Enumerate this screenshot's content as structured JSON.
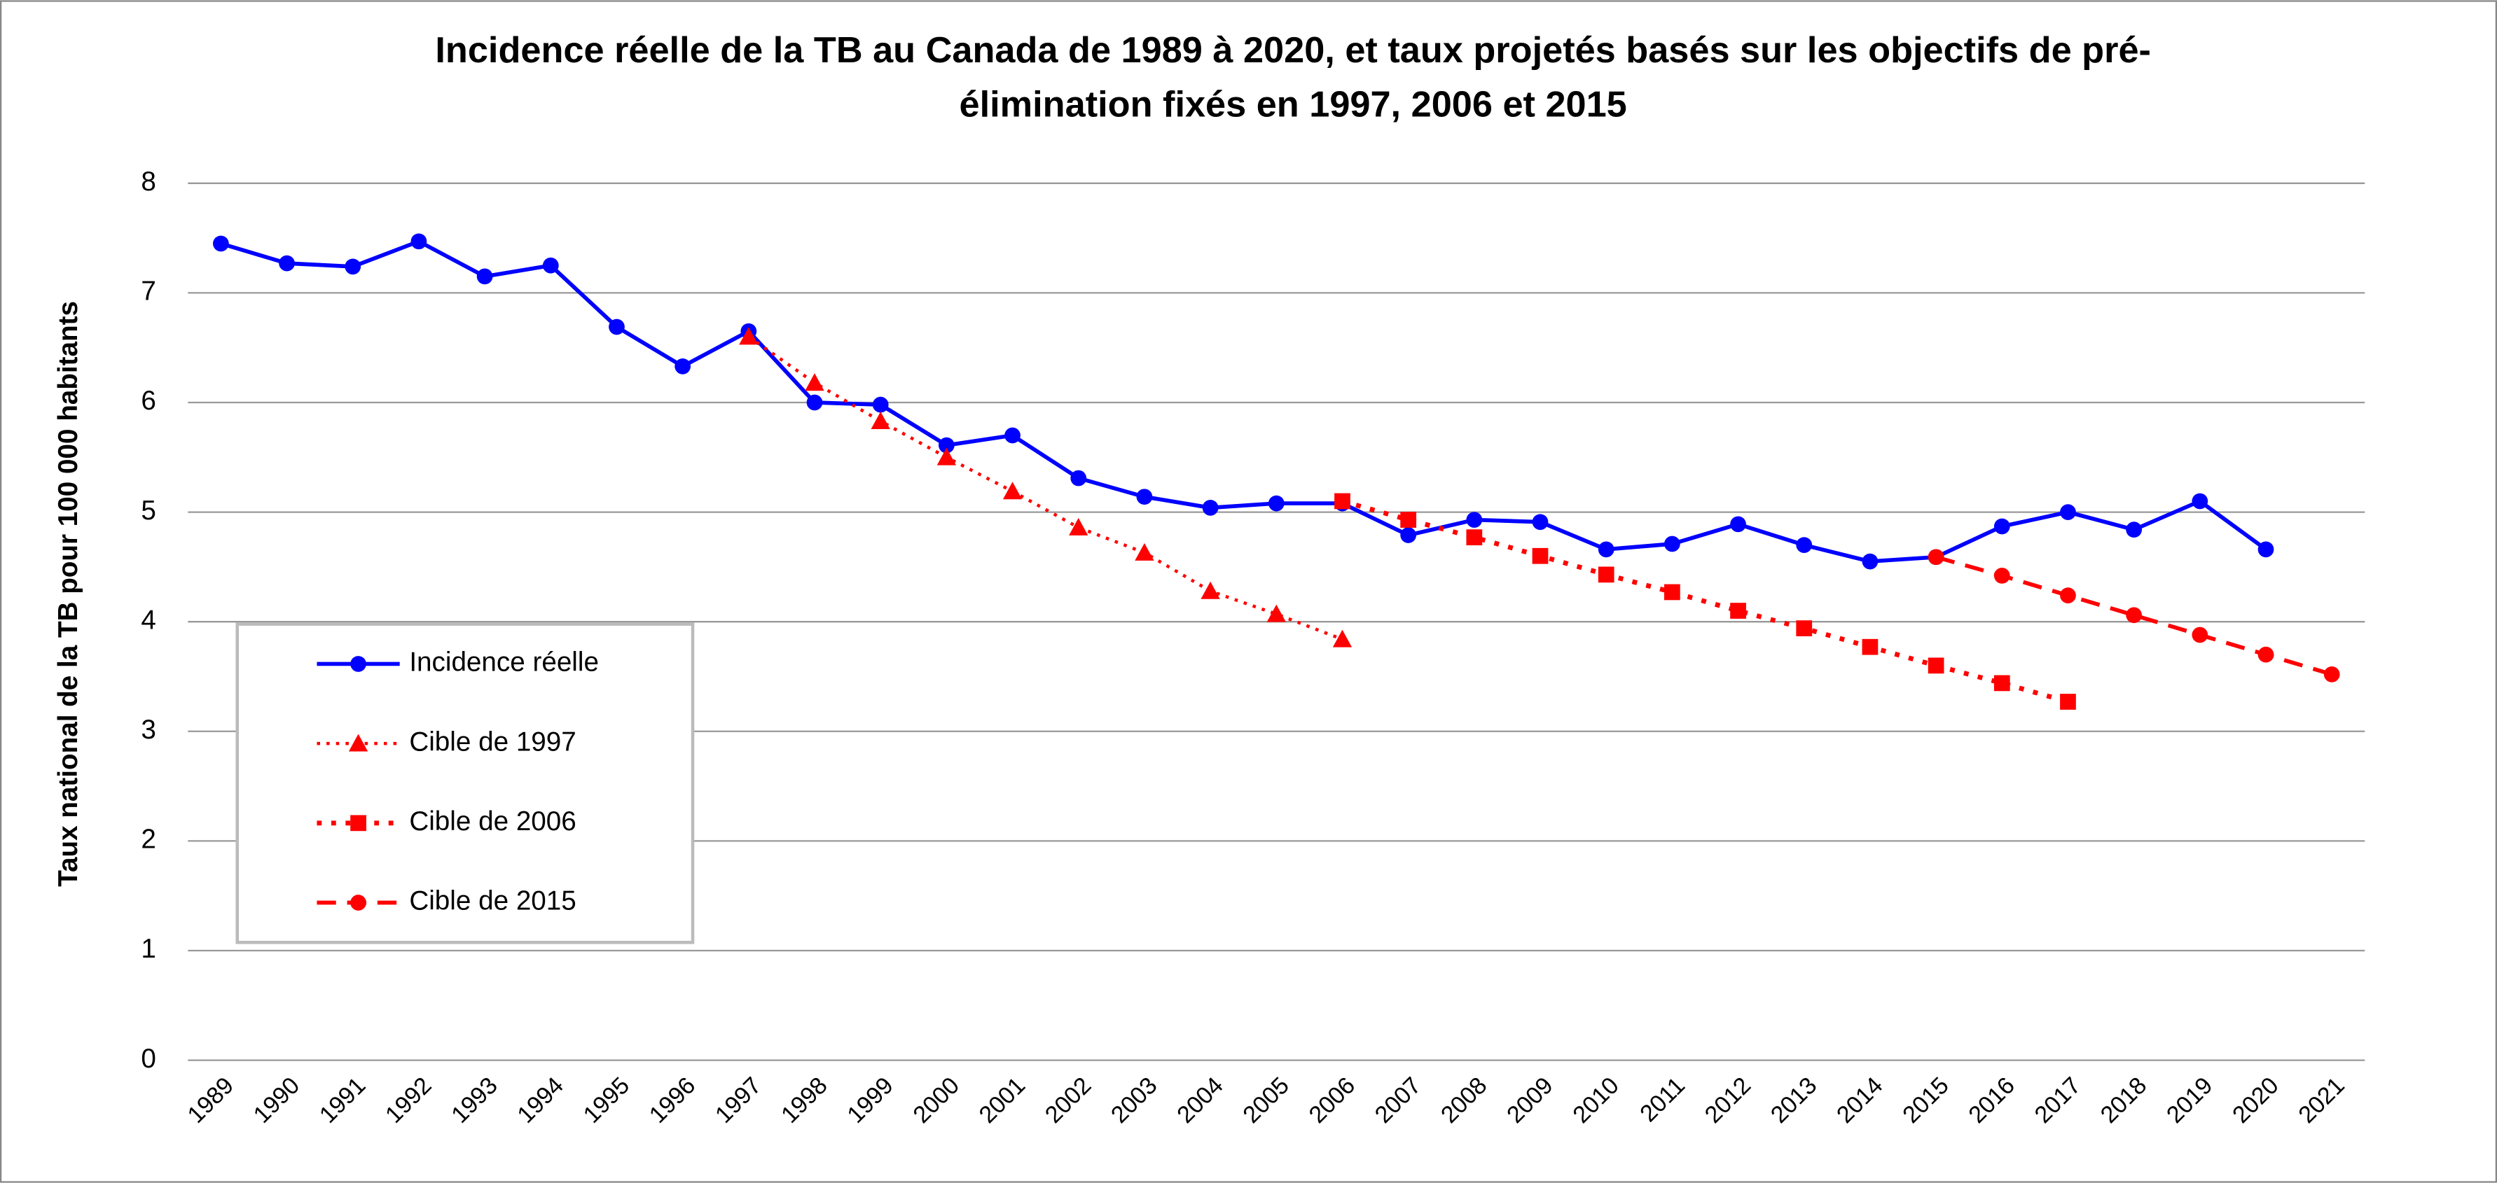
{
  "chart_data": {
    "type": "line",
    "title": [
      "Incidence réelle de la TB au Canada de 1989 à 2020, et taux projetés basés sur les objectifs de pré-",
      "élimination fixés en 1997, 2006 et 2015"
    ],
    "y_label": "Taux national de la TB pour 100 000 habitants",
    "categories": [
      "1989",
      "1990",
      "1991",
      "1992",
      "1993",
      "1994",
      "1995",
      "1996",
      "1997",
      "1998",
      "1999",
      "2000",
      "2001",
      "2002",
      "2003",
      "2004",
      "2005",
      "2006",
      "2007",
      "2008",
      "2009",
      "2010",
      "2011",
      "2012",
      "2013",
      "2014",
      "2015",
      "2016",
      "2017",
      "2018",
      "2019",
      "2020",
      "2021"
    ],
    "ylim": [
      0,
      8
    ],
    "yticks": [
      0,
      1,
      2,
      3,
      4,
      5,
      6,
      7,
      8
    ],
    "grid": true,
    "legend": "lower left",
    "series": [
      {
        "name": "Incidence réelle",
        "color": "#0000ff",
        "marker": "circle",
        "dash": "solid",
        "values": [
          7.45,
          7.27,
          7.24,
          7.47,
          7.15,
          7.25,
          6.69,
          6.33,
          6.65,
          6.0,
          5.98,
          5.61,
          5.7,
          5.31,
          5.14,
          5.04,
          5.08,
          5.08,
          4.79,
          4.93,
          4.91,
          4.66,
          4.71,
          4.89,
          4.7,
          4.55,
          4.59,
          4.87,
          5.0,
          4.84,
          5.1,
          4.66,
          null
        ]
      },
      {
        "name": "Cible de 1997",
        "color": "#ff0000",
        "marker": "triangle",
        "dash": "dot",
        "values": [
          null,
          null,
          null,
          null,
          null,
          null,
          null,
          null,
          6.6,
          6.18,
          5.83,
          5.5,
          5.19,
          4.86,
          4.63,
          4.28,
          4.07,
          3.84,
          null,
          null,
          null,
          null,
          null,
          null,
          null,
          null,
          null,
          null,
          null,
          null,
          null,
          null,
          null
        ]
      },
      {
        "name": "Cible de 2006",
        "color": "#ff0000",
        "marker": "square",
        "dash": "dot-thick",
        "values": [
          null,
          null,
          null,
          null,
          null,
          null,
          null,
          null,
          null,
          null,
          null,
          null,
          null,
          null,
          null,
          null,
          null,
          5.1,
          4.93,
          4.77,
          4.6,
          4.43,
          4.27,
          4.1,
          3.94,
          3.77,
          3.6,
          3.44,
          3.27,
          null,
          null,
          null,
          null
        ]
      },
      {
        "name": "Cible de 2015",
        "color": "#ff0000",
        "marker": "circle",
        "dash": "dash",
        "values": [
          null,
          null,
          null,
          null,
          null,
          null,
          null,
          null,
          null,
          null,
          null,
          null,
          null,
          null,
          null,
          null,
          null,
          null,
          null,
          null,
          null,
          null,
          null,
          null,
          null,
          null,
          4.59,
          4.42,
          4.24,
          4.06,
          3.88,
          3.7,
          3.52
        ]
      }
    ]
  }
}
